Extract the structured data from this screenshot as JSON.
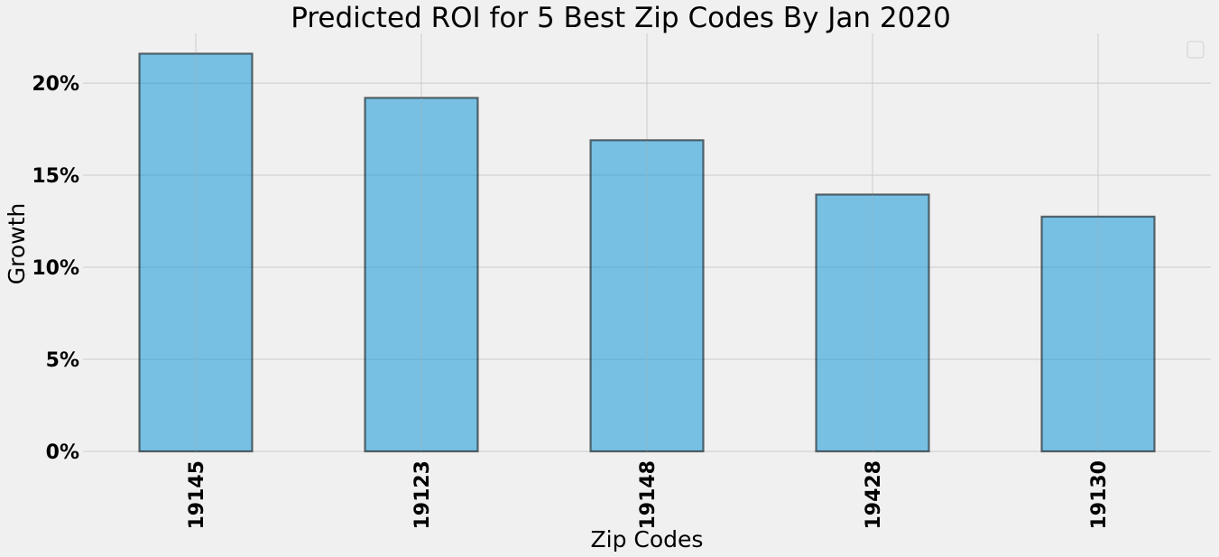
{
  "chart_data": {
    "type": "bar",
    "title": "Predicted ROI for 5 Best Zip Codes By Jan 2020",
    "xlabel": "Zip Codes",
    "ylabel": "Growth",
    "categories": [
      "19145",
      "19123",
      "19148",
      "19428",
      "19130"
    ],
    "values": [
      21.6,
      19.2,
      16.9,
      13.95,
      12.75
    ],
    "ylim": [
      0,
      22.7
    ],
    "yticks": [
      0,
      5,
      10,
      15,
      20
    ],
    "ytick_labels": [
      "0%",
      "5%",
      "10%",
      "15%",
      "20%"
    ],
    "grid": true,
    "legend_placement": "top-right",
    "colors": {
      "bar_fill": "#008fd5",
      "bar_edge": "#000000",
      "background": "#f0f0f0",
      "grid": "#cbcbcb"
    }
  }
}
